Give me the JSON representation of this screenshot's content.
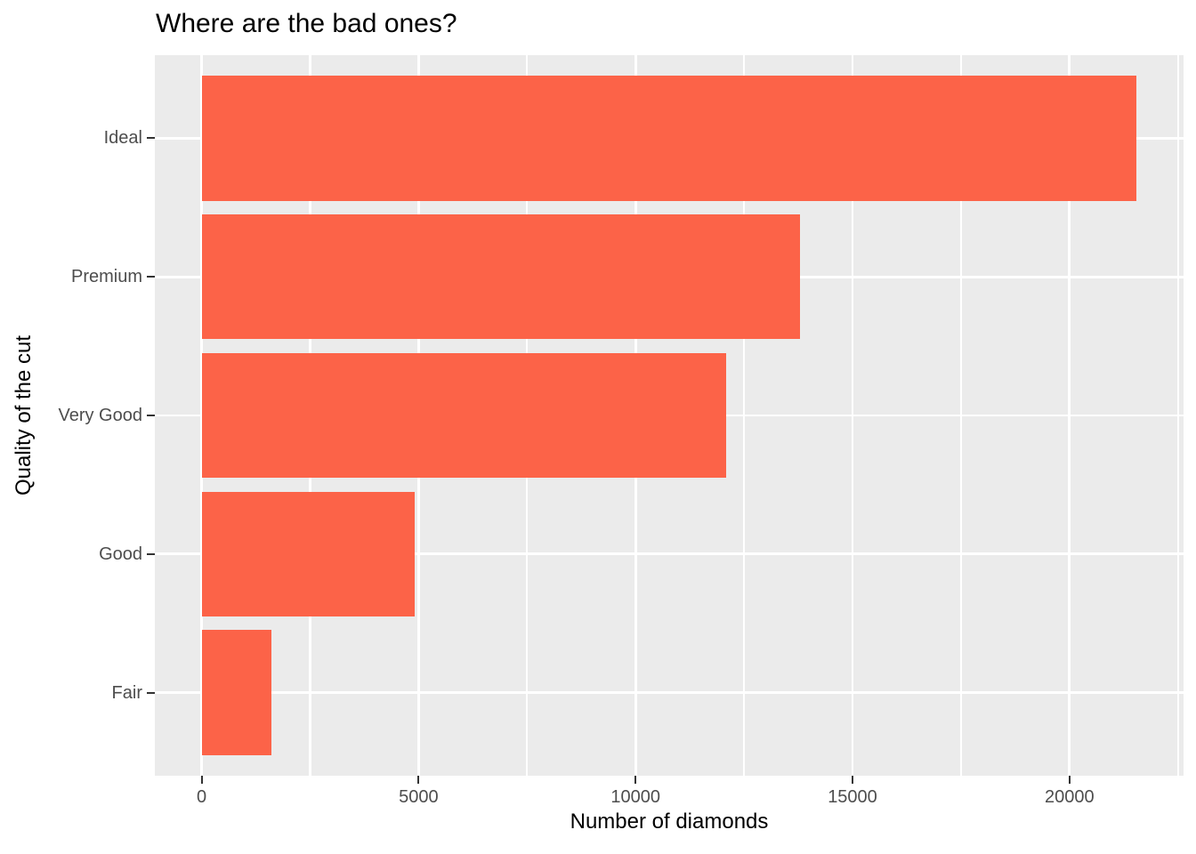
{
  "colors": {
    "bar": "#FC6348",
    "panel_bg": "#EBEBEB",
    "gridline": "#FFFFFF",
    "tick_label": "#4D4D4D",
    "tick_mark": "#333333",
    "title_text": "#000000"
  },
  "chart_data": {
    "type": "bar",
    "orientation": "horizontal",
    "title": "Where are the bad ones?",
    "xlabel": "Number of diamonds",
    "ylabel": "Quality of the cut",
    "categories": [
      "Ideal",
      "Premium",
      "Very Good",
      "Good",
      "Fair"
    ],
    "values": [
      21551,
      13791,
      12082,
      4906,
      1610
    ],
    "x_ticks": [
      0,
      5000,
      10000,
      15000,
      20000
    ],
    "x_tick_labels": [
      "0",
      "5000",
      "10000",
      "15000",
      "20000"
    ],
    "x_minor_ticks": [
      2500,
      7500,
      12500,
      17500,
      22500
    ],
    "xlim": [
      -1077.55,
      22628.55
    ],
    "grid": true,
    "legend": false
  }
}
